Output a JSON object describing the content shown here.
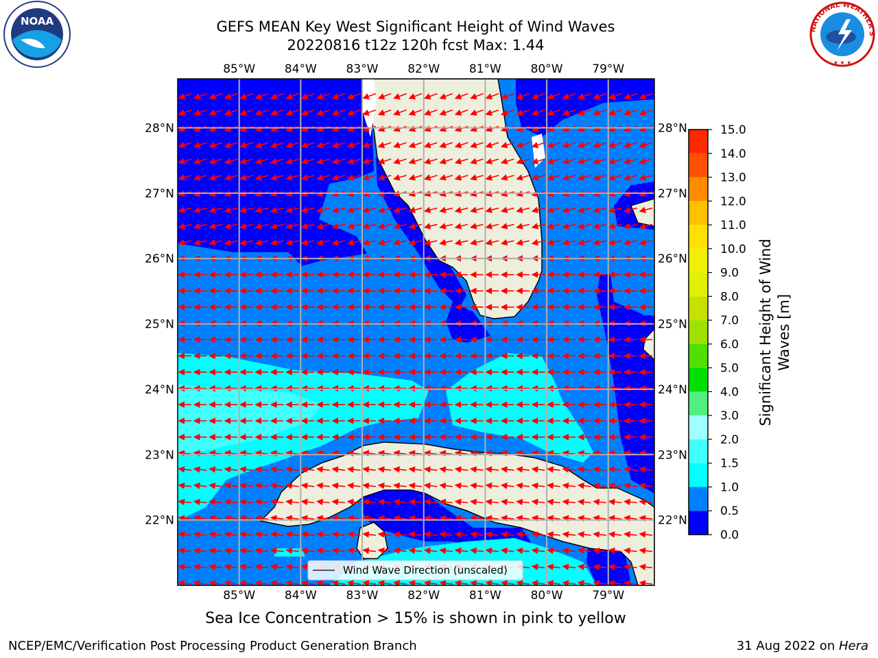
{
  "title": {
    "line1": "GEFS MEAN Key West Significant Height of Wind Waves",
    "line2": "20220816 t12z 120h fcst   Max: 1.44"
  },
  "caption": "Sea Ice Concentration > 15% is shown in pink to yellow",
  "footer": {
    "left": "NCEP/EMC/Verification Post Processing Product Generation Branch",
    "right_date": "31 Aug 2022 on ",
    "right_host": "Hera"
  },
  "map": {
    "lon_ticks": [
      "85°W",
      "84°W",
      "83°W",
      "82°W",
      "81°W",
      "80°W",
      "79°W"
    ],
    "lon_values": [
      -85,
      -84,
      -83,
      -82,
      -81,
      -80,
      -79
    ],
    "lat_ticks": [
      "28°N",
      "27°N",
      "26°N",
      "25°N",
      "24°N",
      "23°N",
      "22°N"
    ],
    "lat_values": [
      28,
      27,
      26,
      25,
      24,
      23,
      22
    ],
    "lon_range": [
      -86.0,
      -78.25
    ],
    "lat_range": [
      21.0,
      28.75
    ],
    "legend_label": "Wind Wave Direction (unscaled)",
    "arrow_color": "#ff0000",
    "land_color": "#eeeedd"
  },
  "colorbar": {
    "label": "Significant Height of Wind Waves [m]",
    "label_line1": "Significant Height of Wind",
    "label_line2": "Waves [m]",
    "ticks": [
      "0.0",
      "0.5",
      "1.0",
      "1.5",
      "2.0",
      "3.0",
      "4.0",
      "5.0",
      "6.0",
      "7.0",
      "8.0",
      "9.0",
      "10.0",
      "11.0",
      "12.0",
      "13.0",
      "14.0",
      "15.0"
    ],
    "colors": [
      "#0000ff",
      "#0080ff",
      "#00ffff",
      "#40ffff",
      "#a0ffff",
      "#50f080",
      "#00e000",
      "#50e000",
      "#a0e000",
      "#c8e000",
      "#e0f000",
      "#f0f000",
      "#ffe000",
      "#ffc000",
      "#ff8c00",
      "#ff5000",
      "#ff2800",
      "#ff0000"
    ]
  },
  "logos": {
    "noaa_text": "NOAA",
    "nws_text": "NATIONAL WEATHER SERVICE"
  }
}
